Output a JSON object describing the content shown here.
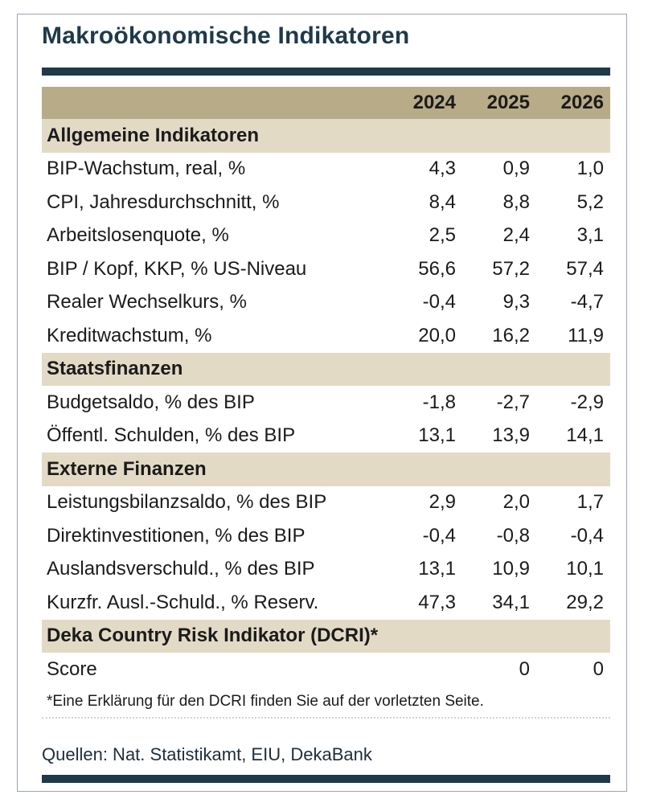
{
  "title": "Makroökonomische Indikatoren",
  "years": [
    "2024",
    "2025",
    "2026"
  ],
  "footnote": "*Eine Erklärung für den DCRI finden Sie auf der vorletzten Seite.",
  "sources": "Quellen: Nat. Statistikamt, EIU, DekaBank",
  "chart_data": {
    "type": "table",
    "title": "Makroökonomische Indikatoren",
    "columns": [
      "2024",
      "2025",
      "2026"
    ],
    "rows": [
      {
        "section": "Allgemeine Indikatoren"
      },
      {
        "label": "BIP-Wachstum, real, %",
        "values": [
          "4,3",
          "0,9",
          "1,0"
        ]
      },
      {
        "label": "CPI, Jahresdurchschnitt, %",
        "values": [
          "8,4",
          "8,8",
          "5,2"
        ]
      },
      {
        "label": "Arbeitslosenquote, %",
        "values": [
          "2,5",
          "2,4",
          "3,1"
        ]
      },
      {
        "label": "BIP / Kopf, KKP, % US-Niveau",
        "values": [
          "56,6",
          "57,2",
          "57,4"
        ]
      },
      {
        "label": "Realer Wechselkurs, %",
        "values": [
          "-0,4",
          "9,3",
          "-4,7"
        ]
      },
      {
        "label": "Kreditwachstum, %",
        "values": [
          "20,0",
          "16,2",
          "11,9"
        ]
      },
      {
        "section": "Staatsfinanzen"
      },
      {
        "label": "Budgetsaldo, % des BIP",
        "values": [
          "-1,8",
          "-2,7",
          "-2,9"
        ]
      },
      {
        "label": "Öffentl. Schulden, % des BIP",
        "values": [
          "13,1",
          "13,9",
          "14,1"
        ]
      },
      {
        "section": "Externe Finanzen"
      },
      {
        "label": "Leistungsbilanzsaldo, % des BIP",
        "values": [
          "2,9",
          "2,0",
          "1,7"
        ]
      },
      {
        "label": "Direktinvestitionen, % des BIP",
        "values": [
          "-0,4",
          "-0,8",
          "-0,4"
        ]
      },
      {
        "label": "Auslandsverschuld., % des BIP",
        "values": [
          "13,1",
          "10,9",
          "10,1"
        ]
      },
      {
        "label": "Kurzfr. Ausl.-Schuld., % Reserv.",
        "values": [
          "47,3",
          "34,1",
          "29,2"
        ]
      },
      {
        "section": "Deka Country Risk Indikator (DCRI)*"
      },
      {
        "label": "Score",
        "values": [
          "",
          "0",
          "0"
        ]
      }
    ]
  }
}
